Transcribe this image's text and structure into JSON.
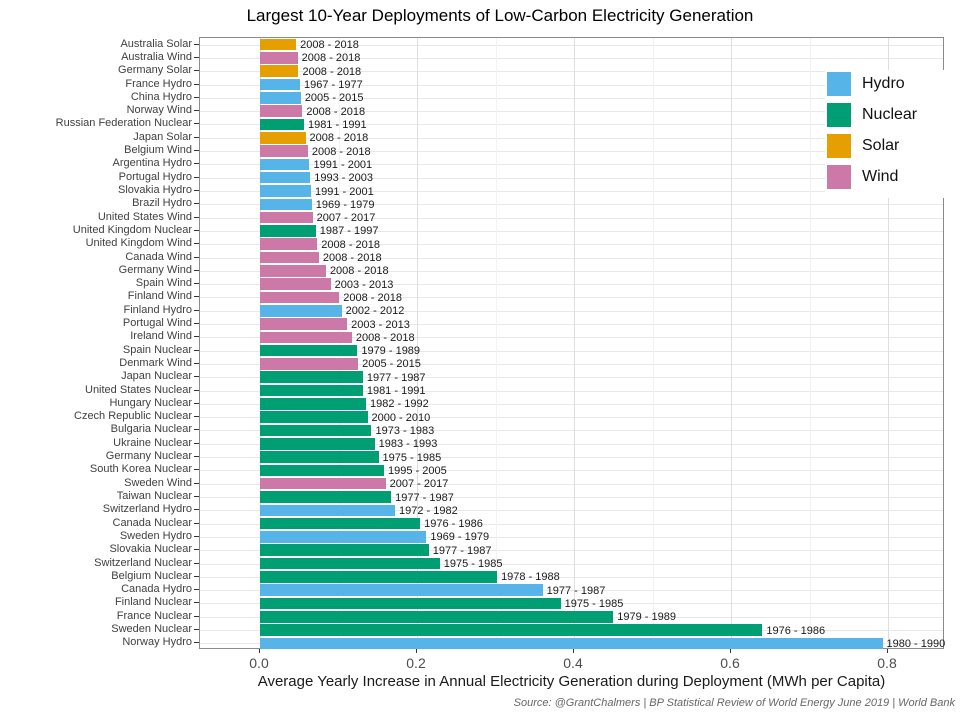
{
  "chart_data": {
    "type": "bar",
    "orientation": "horizontal",
    "title": "Largest 10-Year Deployments of Low-Carbon Electricity Generation",
    "xlabel": "Average Yearly Increase in Annual Electricity Generation during Deployment (MWh per Capita)",
    "caption": "Source: @GrantChalmers | BP Statistical Review of World Energy June 2019 | World Bank",
    "xlim": [
      0,
      0.87
    ],
    "x_major_ticks": [
      0,
      0.2,
      0.4,
      0.6,
      0.8
    ],
    "x_major_tick_labels": [
      "0.0",
      "0.2",
      "0.4",
      "0.6",
      "0.8"
    ],
    "x_minor_ticks": [
      0.1,
      0.3,
      0.5,
      0.7
    ],
    "grid": true,
    "legend_position": "upper-right-inside",
    "legend_labels": [
      "Hydro",
      "Nuclear",
      "Solar",
      "Wind"
    ],
    "palette": {
      "Hydro": "#56B4E9",
      "Nuclear": "#009E73",
      "Solar": "#E69F00",
      "Wind": "#CC79A7"
    },
    "rows": [
      {
        "label": "Australia Solar",
        "type": "Solar",
        "years": "2008 - 2018",
        "value": 0.046
      },
      {
        "label": "Australia Wind",
        "type": "Wind",
        "years": "2008 - 2018",
        "value": 0.048
      },
      {
        "label": "Germany Solar",
        "type": "Solar",
        "years": "2008 - 2018",
        "value": 0.049
      },
      {
        "label": "France Hydro",
        "type": "Hydro",
        "years": "1967 - 1977",
        "value": 0.051
      },
      {
        "label": "China Hydro",
        "type": "Hydro",
        "years": "2005 - 2015",
        "value": 0.052
      },
      {
        "label": "Norway Wind",
        "type": "Wind",
        "years": "2008 - 2018",
        "value": 0.054
      },
      {
        "label": "Russian Federation Nuclear",
        "type": "Nuclear",
        "years": "1981 - 1991",
        "value": 0.056
      },
      {
        "label": "Japan Solar",
        "type": "Solar",
        "years": "2008 - 2018",
        "value": 0.058
      },
      {
        "label": "Belgium Wind",
        "type": "Wind",
        "years": "2008 - 2018",
        "value": 0.061
      },
      {
        "label": "Argentina Hydro",
        "type": "Hydro",
        "years": "1991 - 2001",
        "value": 0.063
      },
      {
        "label": "Portugal Hydro",
        "type": "Hydro",
        "years": "1993 - 2003",
        "value": 0.064
      },
      {
        "label": "Slovakia Hydro",
        "type": "Hydro",
        "years": "1991 - 2001",
        "value": 0.065
      },
      {
        "label": "Brazil Hydro",
        "type": "Hydro",
        "years": "1969 - 1979",
        "value": 0.066
      },
      {
        "label": "United States Wind",
        "type": "Wind",
        "years": "2007 - 2017",
        "value": 0.067
      },
      {
        "label": "United Kingdom Nuclear",
        "type": "Nuclear",
        "years": "1987 - 1997",
        "value": 0.071
      },
      {
        "label": "United Kingdom Wind",
        "type": "Wind",
        "years": "2008 - 2018",
        "value": 0.073
      },
      {
        "label": "Canada Wind",
        "type": "Wind",
        "years": "2008 - 2018",
        "value": 0.075
      },
      {
        "label": "Germany Wind",
        "type": "Wind",
        "years": "2008 - 2018",
        "value": 0.084
      },
      {
        "label": "Spain Wind",
        "type": "Wind",
        "years": "2003 - 2013",
        "value": 0.09
      },
      {
        "label": "Finland Wind",
        "type": "Wind",
        "years": "2008 - 2018",
        "value": 0.101
      },
      {
        "label": "Finland Hydro",
        "type": "Hydro",
        "years": "2002 - 2012",
        "value": 0.104
      },
      {
        "label": "Portugal Wind",
        "type": "Wind",
        "years": "2003 - 2013",
        "value": 0.111
      },
      {
        "label": "Ireland Wind",
        "type": "Wind",
        "years": "2008 - 2018",
        "value": 0.117
      },
      {
        "label": "Spain Nuclear",
        "type": "Nuclear",
        "years": "1979 - 1989",
        "value": 0.124
      },
      {
        "label": "Denmark Wind",
        "type": "Wind",
        "years": "2005 - 2015",
        "value": 0.125
      },
      {
        "label": "Japan Nuclear",
        "type": "Nuclear",
        "years": "1977 - 1987",
        "value": 0.131
      },
      {
        "label": "United States Nuclear",
        "type": "Nuclear",
        "years": "1981 - 1991",
        "value": 0.131
      },
      {
        "label": "Hungary Nuclear",
        "type": "Nuclear",
        "years": "1982 - 1992",
        "value": 0.135
      },
      {
        "label": "Czech Republic Nuclear",
        "type": "Nuclear",
        "years": "2000 - 2010",
        "value": 0.137
      },
      {
        "label": "Bulgaria Nuclear",
        "type": "Nuclear",
        "years": "1973 - 1983",
        "value": 0.142
      },
      {
        "label": "Ukraine Nuclear",
        "type": "Nuclear",
        "years": "1983 - 1993",
        "value": 0.146
      },
      {
        "label": "Germany Nuclear",
        "type": "Nuclear",
        "years": "1975 - 1985",
        "value": 0.151
      },
      {
        "label": "South Korea Nuclear",
        "type": "Nuclear",
        "years": "1995 - 2005",
        "value": 0.158
      },
      {
        "label": "Sweden Wind",
        "type": "Wind",
        "years": "2007 - 2017",
        "value": 0.16
      },
      {
        "label": "Taiwan Nuclear",
        "type": "Nuclear",
        "years": "1977 - 1987",
        "value": 0.167
      },
      {
        "label": "Switzerland Hydro",
        "type": "Hydro",
        "years": "1972 - 1982",
        "value": 0.172
      },
      {
        "label": "Canada Nuclear",
        "type": "Nuclear",
        "years": "1976 - 1986",
        "value": 0.204
      },
      {
        "label": "Sweden Hydro",
        "type": "Hydro",
        "years": "1969 - 1979",
        "value": 0.212
      },
      {
        "label": "Slovakia Nuclear",
        "type": "Nuclear",
        "years": "1977 - 1987",
        "value": 0.215
      },
      {
        "label": "Switzerland Nuclear",
        "type": "Nuclear",
        "years": "1975 - 1985",
        "value": 0.229
      },
      {
        "label": "Belgium Nuclear",
        "type": "Nuclear",
        "years": "1978 - 1988",
        "value": 0.302
      },
      {
        "label": "Canada Hydro",
        "type": "Hydro",
        "years": "1977 - 1987",
        "value": 0.36
      },
      {
        "label": "Finland Nuclear",
        "type": "Nuclear",
        "years": "1975 - 1985",
        "value": 0.383
      },
      {
        "label": "France Nuclear",
        "type": "Nuclear",
        "years": "1979 - 1989",
        "value": 0.45
      },
      {
        "label": "Sweden Nuclear",
        "type": "Nuclear",
        "years": "1976 - 1986",
        "value": 0.64
      },
      {
        "label": "Norway Hydro",
        "type": "Hydro",
        "years": "1980 - 1990",
        "value": 0.793
      }
    ]
  }
}
